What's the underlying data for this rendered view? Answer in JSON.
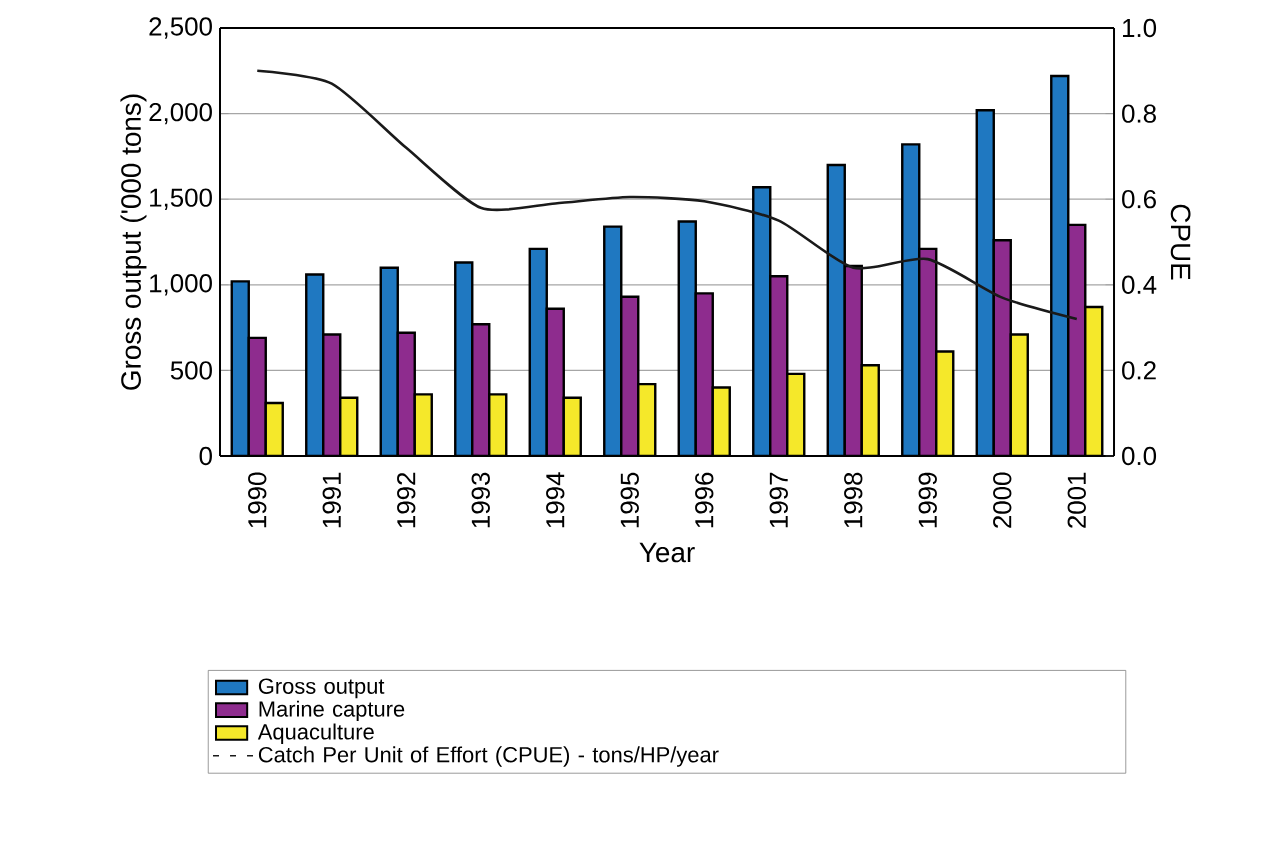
{
  "chart_data": {
    "type": "bar",
    "xlabel": "Year",
    "ylabel": "Gross output ('000 tons)",
    "y2label": "CPUE",
    "categories": [
      "1990",
      "1991",
      "1992",
      "1993",
      "1994",
      "1995",
      "1996",
      "1997",
      "1998",
      "1999",
      "2000",
      "2001"
    ],
    "series": [
      {
        "name": "Gross output",
        "color": "#1f78c1",
        "values": [
          1020,
          1060,
          1100,
          1130,
          1210,
          1340,
          1370,
          1570,
          1700,
          1820,
          2020,
          2220
        ]
      },
      {
        "name": "Marine capture",
        "color": "#8e2c8e",
        "values": [
          690,
          710,
          720,
          770,
          860,
          930,
          950,
          1050,
          1110,
          1210,
          1260,
          1350
        ]
      },
      {
        "name": "Aquaculture",
        "color": "#f5e82a",
        "values": [
          310,
          340,
          360,
          360,
          340,
          420,
          400,
          480,
          530,
          610,
          710,
          870
        ]
      },
      {
        "name": "Catch Per Unit of Effort (CPUE) - tons/HP/year",
        "color": "#1a1a1a",
        "type": "line",
        "axis": "y2",
        "values": [
          0.9,
          0.87,
          0.72,
          0.58,
          0.59,
          0.605,
          0.595,
          0.55,
          0.44,
          0.46,
          0.37,
          0.32
        ]
      }
    ],
    "ylim": [
      0,
      2500
    ],
    "yticks": [
      0,
      {
        "value": 500,
        "label": "500"
      },
      {
        "value": 1000,
        "label": "1,000"
      },
      {
        "value": 1500,
        "label": "1,500"
      },
      {
        "value": 2000,
        "label": "2,000"
      },
      {
        "value": 2500,
        "label": "2,500"
      }
    ],
    "y2lim": [
      0,
      1
    ],
    "y2ticks": [
      {
        "value": 0,
        "label": "0.0"
      },
      {
        "value": 0.2,
        "label": "0.2"
      },
      {
        "value": 0.4,
        "label": "0.4"
      },
      {
        "value": 0.6,
        "label": "0.6"
      },
      {
        "value": 0.8,
        "label": "0.8"
      },
      {
        "value": 1,
        "label": "1.0"
      }
    ],
    "grid": "y",
    "legend": "bottom"
  }
}
